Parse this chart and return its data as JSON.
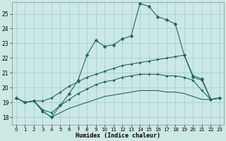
{
  "title": "",
  "xlabel": "Humidex (Indice chaleur)",
  "background_color": "#cce8e4",
  "grid_color": "#99cccc",
  "line_color": "#1a6b5a",
  "xlim": [
    -0.5,
    23.5
  ],
  "ylim": [
    17.5,
    25.8
  ],
  "yticks": [
    18,
    19,
    20,
    21,
    22,
    23,
    24,
    25
  ],
  "xticks": [
    0,
    1,
    2,
    3,
    4,
    5,
    6,
    7,
    8,
    9,
    10,
    11,
    12,
    13,
    14,
    15,
    16,
    17,
    18,
    19,
    20,
    21,
    22,
    23
  ],
  "line1_x": [
    0,
    1,
    2,
    3,
    4,
    5,
    6,
    7,
    8,
    9,
    10,
    11,
    12,
    13,
    14,
    15,
    16,
    17,
    18,
    19,
    20,
    21,
    22,
    23
  ],
  "line1_y": [
    19.3,
    19.0,
    19.1,
    18.4,
    18.0,
    18.8,
    19.6,
    20.5,
    22.2,
    23.2,
    22.8,
    22.9,
    23.3,
    23.5,
    25.7,
    25.5,
    24.8,
    24.6,
    24.3,
    22.2,
    20.8,
    20.6,
    19.2,
    19.3
  ],
  "line2_x": [
    0,
    1,
    2,
    3,
    4,
    5,
    6,
    7,
    8,
    9,
    10,
    11,
    12,
    13,
    14,
    15,
    16,
    17,
    18,
    19,
    20,
    21,
    22,
    23
  ],
  "line2_y": [
    19.3,
    19.0,
    19.1,
    19.1,
    19.3,
    19.7,
    20.1,
    20.4,
    20.7,
    20.9,
    21.1,
    21.3,
    21.5,
    21.6,
    21.7,
    21.8,
    21.9,
    22.0,
    22.1,
    22.2,
    20.7,
    20.5,
    19.2,
    19.3
  ],
  "line3_x": [
    0,
    1,
    2,
    3,
    4,
    5,
    6,
    7,
    8,
    9,
    10,
    11,
    12,
    13,
    14,
    15,
    16,
    17,
    18,
    19,
    20,
    21,
    22,
    23
  ],
  "line3_y": [
    19.3,
    19.0,
    19.1,
    18.5,
    18.3,
    18.8,
    19.2,
    19.6,
    19.9,
    20.2,
    20.4,
    20.5,
    20.7,
    20.8,
    20.9,
    20.9,
    20.9,
    20.8,
    20.8,
    20.7,
    20.5,
    19.8,
    19.2,
    19.3
  ],
  "line4_x": [
    0,
    1,
    2,
    3,
    4,
    5,
    6,
    7,
    8,
    9,
    10,
    11,
    12,
    13,
    14,
    15,
    16,
    17,
    18,
    19,
    20,
    21,
    22,
    23
  ],
  "line4_y": [
    19.3,
    19.0,
    19.1,
    18.4,
    18.0,
    18.3,
    18.6,
    18.8,
    19.0,
    19.2,
    19.4,
    19.5,
    19.6,
    19.7,
    19.8,
    19.8,
    19.8,
    19.7,
    19.7,
    19.6,
    19.4,
    19.2,
    19.2,
    19.3
  ],
  "marker_x1": [
    0,
    1,
    2,
    3,
    4,
    5,
    6,
    7,
    8,
    9,
    10,
    11,
    12,
    13,
    14,
    15,
    16,
    17,
    18,
    19,
    20,
    21,
    22,
    23
  ],
  "marker_x2": [
    0,
    1,
    2,
    3,
    4,
    5,
    6,
    7,
    8,
    9,
    10,
    11,
    12,
    13,
    14,
    15,
    16,
    17,
    18,
    19,
    20,
    21,
    22,
    23
  ],
  "marker_x3": [
    0,
    1,
    2,
    3,
    4,
    5,
    6,
    7,
    8,
    9,
    10,
    11,
    12,
    13,
    14,
    15,
    16,
    17,
    18,
    19,
    20,
    21,
    22,
    23
  ],
  "marker_x4": [
    0,
    1,
    2,
    3,
    4,
    5,
    6,
    7,
    8,
    9,
    10,
    11,
    12,
    13,
    14,
    15,
    16,
    17,
    18,
    19,
    20,
    21,
    22,
    23
  ]
}
